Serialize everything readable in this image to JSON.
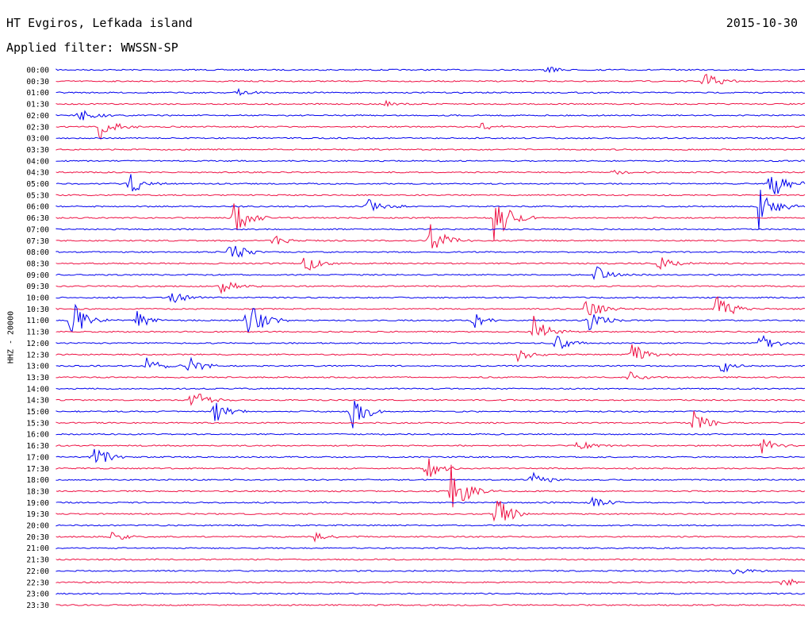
{
  "header": {
    "station": "HT Evgiros, Lefkada island",
    "date": "2015-10-30",
    "filter": "Applied filter: WWSSN-SP"
  },
  "channel_label": "HHZ - 20000",
  "colors": {
    "trace_a": "#0000ee",
    "trace_b": "#ee1144"
  },
  "chart_data": {
    "type": "line",
    "title": "HT Evgiros, Lefkada island",
    "subtitle": "Applied filter: WWSSN-SP",
    "ylabel": "HHZ - 20000",
    "y_ticks": [
      "00:00",
      "00:30",
      "01:00",
      "01:30",
      "02:00",
      "02:30",
      "03:00",
      "03:30",
      "04:00",
      "04:30",
      "05:00",
      "05:30",
      "06:00",
      "06:30",
      "07:00",
      "07:30",
      "08:00",
      "08:30",
      "09:00",
      "09:30",
      "10:00",
      "10:30",
      "11:00",
      "11:30",
      "12:00",
      "12:30",
      "13:00",
      "13:30",
      "14:00",
      "14:30",
      "15:00",
      "15:30",
      "16:00",
      "16:30",
      "17:00",
      "17:30",
      "18:00",
      "18:30",
      "19:00",
      "19:30",
      "20:00",
      "20:30",
      "21:00",
      "21:30",
      "22:00",
      "22:30",
      "23:00",
      "23:30"
    ],
    "x_range_minutes": [
      0,
      30
    ],
    "grid": false,
    "legend": "none",
    "events": [
      {
        "row": "00:00",
        "minute": 19.6,
        "amp": 5
      },
      {
        "row": "00:30",
        "minute": 25.9,
        "amp": 14
      },
      {
        "row": "01:00",
        "minute": 7.2,
        "amp": 8
      },
      {
        "row": "01:30",
        "minute": 13.2,
        "amp": 5
      },
      {
        "row": "02:00",
        "minute": 0.9,
        "amp": 12
      },
      {
        "row": "02:30",
        "minute": 1.7,
        "amp": 20
      },
      {
        "row": "02:30",
        "minute": 16.9,
        "amp": 6
      },
      {
        "row": "04:30",
        "minute": 22.3,
        "amp": 5
      },
      {
        "row": "05:00",
        "minute": 2.9,
        "amp": 16
      },
      {
        "row": "05:00",
        "minute": 28.6,
        "amp": 26
      },
      {
        "row": "06:00",
        "minute": 12.4,
        "amp": 14
      },
      {
        "row": "06:00",
        "minute": 28.1,
        "amp": 34
      },
      {
        "row": "06:30",
        "minute": 7.1,
        "amp": 24
      },
      {
        "row": "06:30",
        "minute": 17.5,
        "amp": 40
      },
      {
        "row": "07:30",
        "minute": 8.7,
        "amp": 10
      },
      {
        "row": "07:30",
        "minute": 14.9,
        "amp": 26
      },
      {
        "row": "08:00",
        "minute": 6.9,
        "amp": 16
      },
      {
        "row": "08:30",
        "minute": 9.9,
        "amp": 14
      },
      {
        "row": "08:30",
        "minute": 24.1,
        "amp": 12
      },
      {
        "row": "09:00",
        "minute": 21.6,
        "amp": 12
      },
      {
        "row": "09:30",
        "minute": 6.6,
        "amp": 10
      },
      {
        "row": "10:00",
        "minute": 4.6,
        "amp": 14
      },
      {
        "row": "10:30",
        "minute": 21.1,
        "amp": 20
      },
      {
        "row": "10:30",
        "minute": 26.4,
        "amp": 22
      },
      {
        "row": "11:00",
        "minute": 0.6,
        "amp": 30
      },
      {
        "row": "11:00",
        "minute": 3.2,
        "amp": 14
      },
      {
        "row": "11:00",
        "minute": 7.6,
        "amp": 30
      },
      {
        "row": "11:00",
        "minute": 16.7,
        "amp": 12
      },
      {
        "row": "11:00",
        "minute": 21.3,
        "amp": 14
      },
      {
        "row": "11:30",
        "minute": 19.1,
        "amp": 22
      },
      {
        "row": "12:00",
        "minute": 20.0,
        "amp": 12
      },
      {
        "row": "12:00",
        "minute": 28.1,
        "amp": 14
      },
      {
        "row": "12:30",
        "minute": 18.4,
        "amp": 12
      },
      {
        "row": "12:30",
        "minute": 23.0,
        "amp": 16
      },
      {
        "row": "13:00",
        "minute": 3.6,
        "amp": 12
      },
      {
        "row": "13:00",
        "minute": 5.3,
        "amp": 12
      },
      {
        "row": "13:00",
        "minute": 26.6,
        "amp": 10
      },
      {
        "row": "13:30",
        "minute": 22.9,
        "amp": 8
      },
      {
        "row": "14:30",
        "minute": 5.4,
        "amp": 16
      },
      {
        "row": "15:00",
        "minute": 6.3,
        "amp": 18
      },
      {
        "row": "15:00",
        "minute": 11.8,
        "amp": 26
      },
      {
        "row": "15:30",
        "minute": 25.5,
        "amp": 16
      },
      {
        "row": "16:30",
        "minute": 20.9,
        "amp": 8
      },
      {
        "row": "16:30",
        "minute": 28.2,
        "amp": 12
      },
      {
        "row": "17:00",
        "minute": 1.4,
        "amp": 20
      },
      {
        "row": "17:30",
        "minute": 14.8,
        "amp": 16
      },
      {
        "row": "18:30",
        "minute": 15.8,
        "amp": 36
      },
      {
        "row": "18:00",
        "minute": 19.0,
        "amp": 10
      },
      {
        "row": "19:00",
        "minute": 21.4,
        "amp": 10
      },
      {
        "row": "19:30",
        "minute": 17.6,
        "amp": 24
      },
      {
        "row": "20:30",
        "minute": 2.2,
        "amp": 8
      },
      {
        "row": "20:30",
        "minute": 10.3,
        "amp": 6
      },
      {
        "row": "22:00",
        "minute": 27.1,
        "amp": 6
      },
      {
        "row": "22:30",
        "minute": 29.1,
        "amp": 8
      }
    ]
  }
}
